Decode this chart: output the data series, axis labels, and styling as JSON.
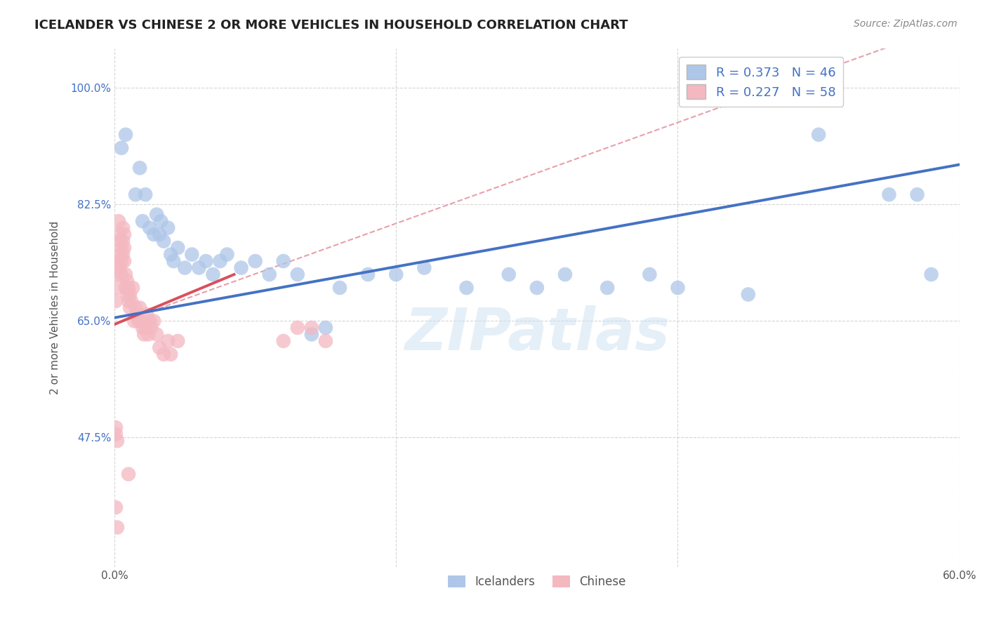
{
  "title": "ICELANDER VS CHINESE 2 OR MORE VEHICLES IN HOUSEHOLD CORRELATION CHART",
  "source": "Source: ZipAtlas.com",
  "ylabel": "2 or more Vehicles in Household",
  "xlim": [
    0.0,
    0.6
  ],
  "ylim": [
    0.28,
    1.06
  ],
  "icelander_color": "#aec6e8",
  "chinese_color": "#f4b8c1",
  "icelander_line_color": "#4472c4",
  "chinese_line_color": "#d94f5c",
  "chinese_dashed_color": "#e8a0aa",
  "watermark": "ZIPatlas",
  "icelander_R": 0.373,
  "icelander_N": 46,
  "chinese_R": 0.227,
  "chinese_N": 58,
  "blue_line": [
    [
      0.0,
      0.655
    ],
    [
      0.6,
      0.885
    ]
  ],
  "pink_solid_line": [
    [
      0.0,
      0.645
    ],
    [
      0.085,
      0.72
    ]
  ],
  "pink_dashed_line": [
    [
      0.0,
      0.645
    ],
    [
      0.6,
      1.1
    ]
  ],
  "icelander_points": [
    [
      0.005,
      0.91
    ],
    [
      0.008,
      0.93
    ],
    [
      0.015,
      0.84
    ],
    [
      0.018,
      0.88
    ],
    [
      0.02,
      0.8
    ],
    [
      0.022,
      0.84
    ],
    [
      0.025,
      0.79
    ],
    [
      0.028,
      0.78
    ],
    [
      0.03,
      0.81
    ],
    [
      0.032,
      0.78
    ],
    [
      0.033,
      0.8
    ],
    [
      0.035,
      0.77
    ],
    [
      0.038,
      0.79
    ],
    [
      0.04,
      0.75
    ],
    [
      0.042,
      0.74
    ],
    [
      0.045,
      0.76
    ],
    [
      0.05,
      0.73
    ],
    [
      0.055,
      0.75
    ],
    [
      0.06,
      0.73
    ],
    [
      0.065,
      0.74
    ],
    [
      0.07,
      0.72
    ],
    [
      0.075,
      0.74
    ],
    [
      0.08,
      0.75
    ],
    [
      0.09,
      0.73
    ],
    [
      0.1,
      0.74
    ],
    [
      0.11,
      0.72
    ],
    [
      0.12,
      0.74
    ],
    [
      0.13,
      0.72
    ],
    [
      0.14,
      0.63
    ],
    [
      0.15,
      0.64
    ],
    [
      0.16,
      0.7
    ],
    [
      0.18,
      0.72
    ],
    [
      0.2,
      0.72
    ],
    [
      0.22,
      0.73
    ],
    [
      0.25,
      0.7
    ],
    [
      0.28,
      0.72
    ],
    [
      0.3,
      0.7
    ],
    [
      0.32,
      0.72
    ],
    [
      0.35,
      0.7
    ],
    [
      0.38,
      0.72
    ],
    [
      0.4,
      0.7
    ],
    [
      0.45,
      0.69
    ],
    [
      0.5,
      0.93
    ],
    [
      0.55,
      0.84
    ],
    [
      0.57,
      0.84
    ],
    [
      0.58,
      0.72
    ]
  ],
  "chinese_points": [
    [
      0.001,
      0.68
    ],
    [
      0.002,
      0.72
    ],
    [
      0.002,
      0.7
    ],
    [
      0.003,
      0.78
    ],
    [
      0.003,
      0.8
    ],
    [
      0.003,
      0.74
    ],
    [
      0.004,
      0.77
    ],
    [
      0.004,
      0.75
    ],
    [
      0.004,
      0.73
    ],
    [
      0.005,
      0.76
    ],
    [
      0.005,
      0.74
    ],
    [
      0.005,
      0.72
    ],
    [
      0.006,
      0.79
    ],
    [
      0.006,
      0.77
    ],
    [
      0.006,
      0.75
    ],
    [
      0.007,
      0.78
    ],
    [
      0.007,
      0.76
    ],
    [
      0.007,
      0.74
    ],
    [
      0.008,
      0.72
    ],
    [
      0.008,
      0.7
    ],
    [
      0.009,
      0.71
    ],
    [
      0.009,
      0.69
    ],
    [
      0.01,
      0.7
    ],
    [
      0.01,
      0.68
    ],
    [
      0.011,
      0.69
    ],
    [
      0.011,
      0.67
    ],
    [
      0.012,
      0.68
    ],
    [
      0.013,
      0.7
    ],
    [
      0.014,
      0.65
    ],
    [
      0.015,
      0.67
    ],
    [
      0.016,
      0.66
    ],
    [
      0.017,
      0.65
    ],
    [
      0.018,
      0.67
    ],
    [
      0.019,
      0.65
    ],
    [
      0.02,
      0.64
    ],
    [
      0.021,
      0.63
    ],
    [
      0.022,
      0.64
    ],
    [
      0.023,
      0.66
    ],
    [
      0.024,
      0.63
    ],
    [
      0.025,
      0.65
    ],
    [
      0.026,
      0.64
    ],
    [
      0.028,
      0.65
    ],
    [
      0.03,
      0.63
    ],
    [
      0.032,
      0.61
    ],
    [
      0.035,
      0.6
    ],
    [
      0.038,
      0.62
    ],
    [
      0.04,
      0.6
    ],
    [
      0.045,
      0.62
    ],
    [
      0.001,
      0.49
    ],
    [
      0.001,
      0.48
    ],
    [
      0.002,
      0.47
    ],
    [
      0.01,
      0.42
    ],
    [
      0.001,
      0.37
    ],
    [
      0.002,
      0.34
    ],
    [
      0.12,
      0.62
    ],
    [
      0.13,
      0.64
    ],
    [
      0.14,
      0.64
    ],
    [
      0.15,
      0.62
    ]
  ]
}
